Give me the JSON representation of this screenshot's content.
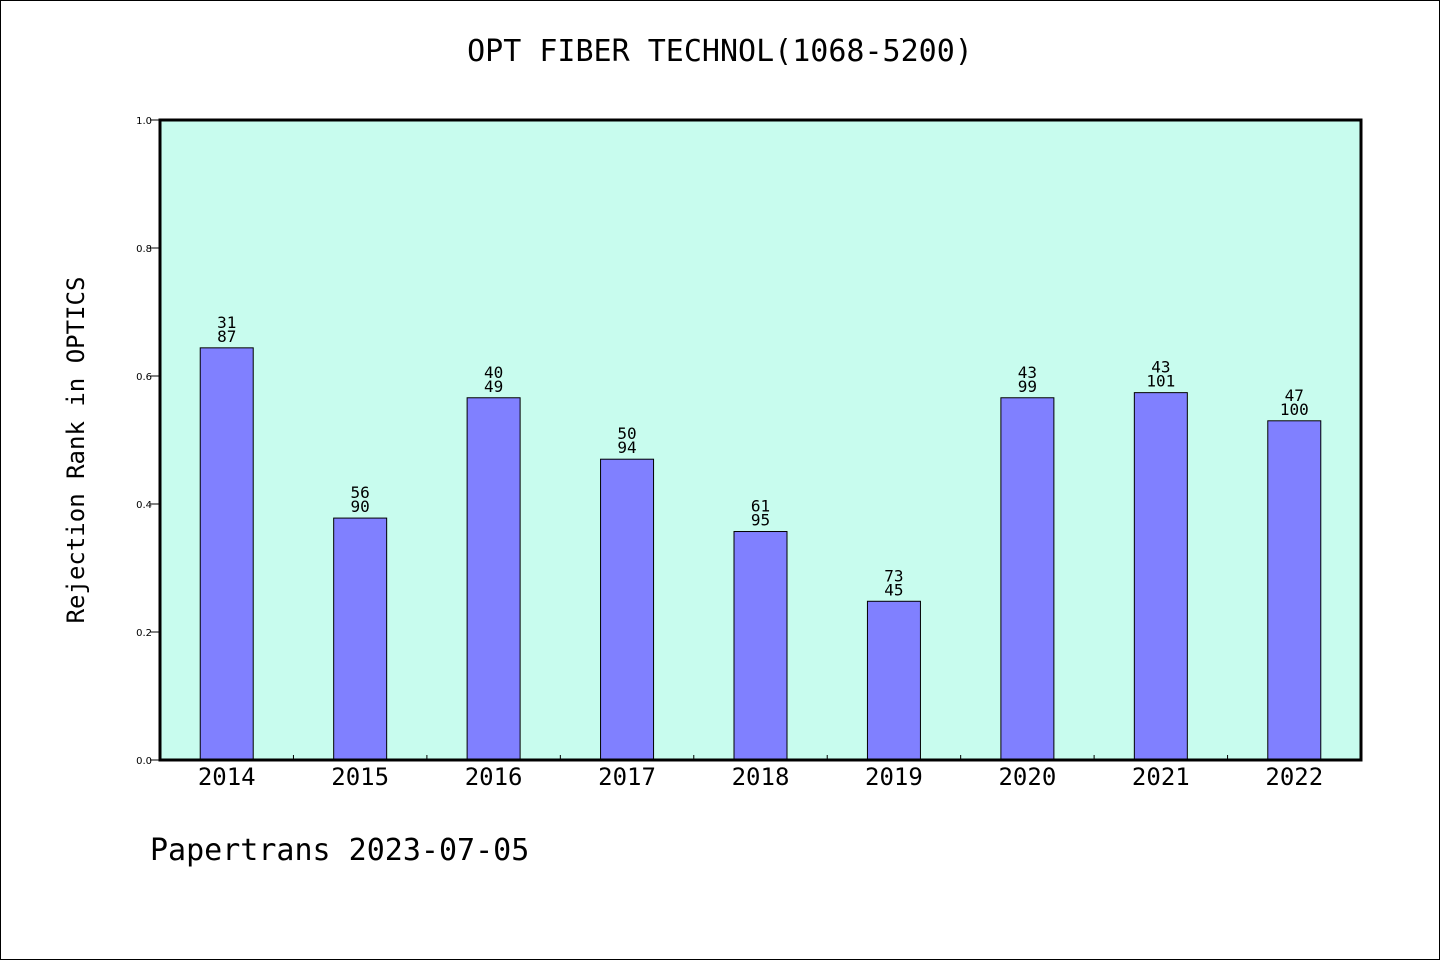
{
  "chart_data": {
    "type": "bar",
    "title": "OPT FIBER TECHNOL(1068-5200)",
    "ylabel": "Rejection Rank in OPTICS",
    "xlabel": "",
    "categories": [
      "2014",
      "2015",
      "2016",
      "2017",
      "2018",
      "2019",
      "2020",
      "2021",
      "2022"
    ],
    "values": [
      0.644,
      0.378,
      0.566,
      0.47,
      0.357,
      0.248,
      0.566,
      0.574,
      0.53
    ],
    "data_labels_top": [
      "31",
      "56",
      "40",
      "50",
      "61",
      "73",
      "43",
      "43",
      "47"
    ],
    "data_labels_bottom": [
      "87",
      "90",
      "49",
      "94",
      "95",
      "45",
      "99",
      "101",
      "100"
    ],
    "ylim": [
      0,
      1.0
    ],
    "yticks": [
      "0.0",
      "0.2",
      "0.4",
      "0.6",
      "0.8",
      "1.0"
    ],
    "grid": false,
    "colors": {
      "plot_bg": "#c8fcee",
      "bar": "#8080ff",
      "bar_edge": "#000000"
    }
  },
  "footer": "Papertrans 2023-07-05"
}
